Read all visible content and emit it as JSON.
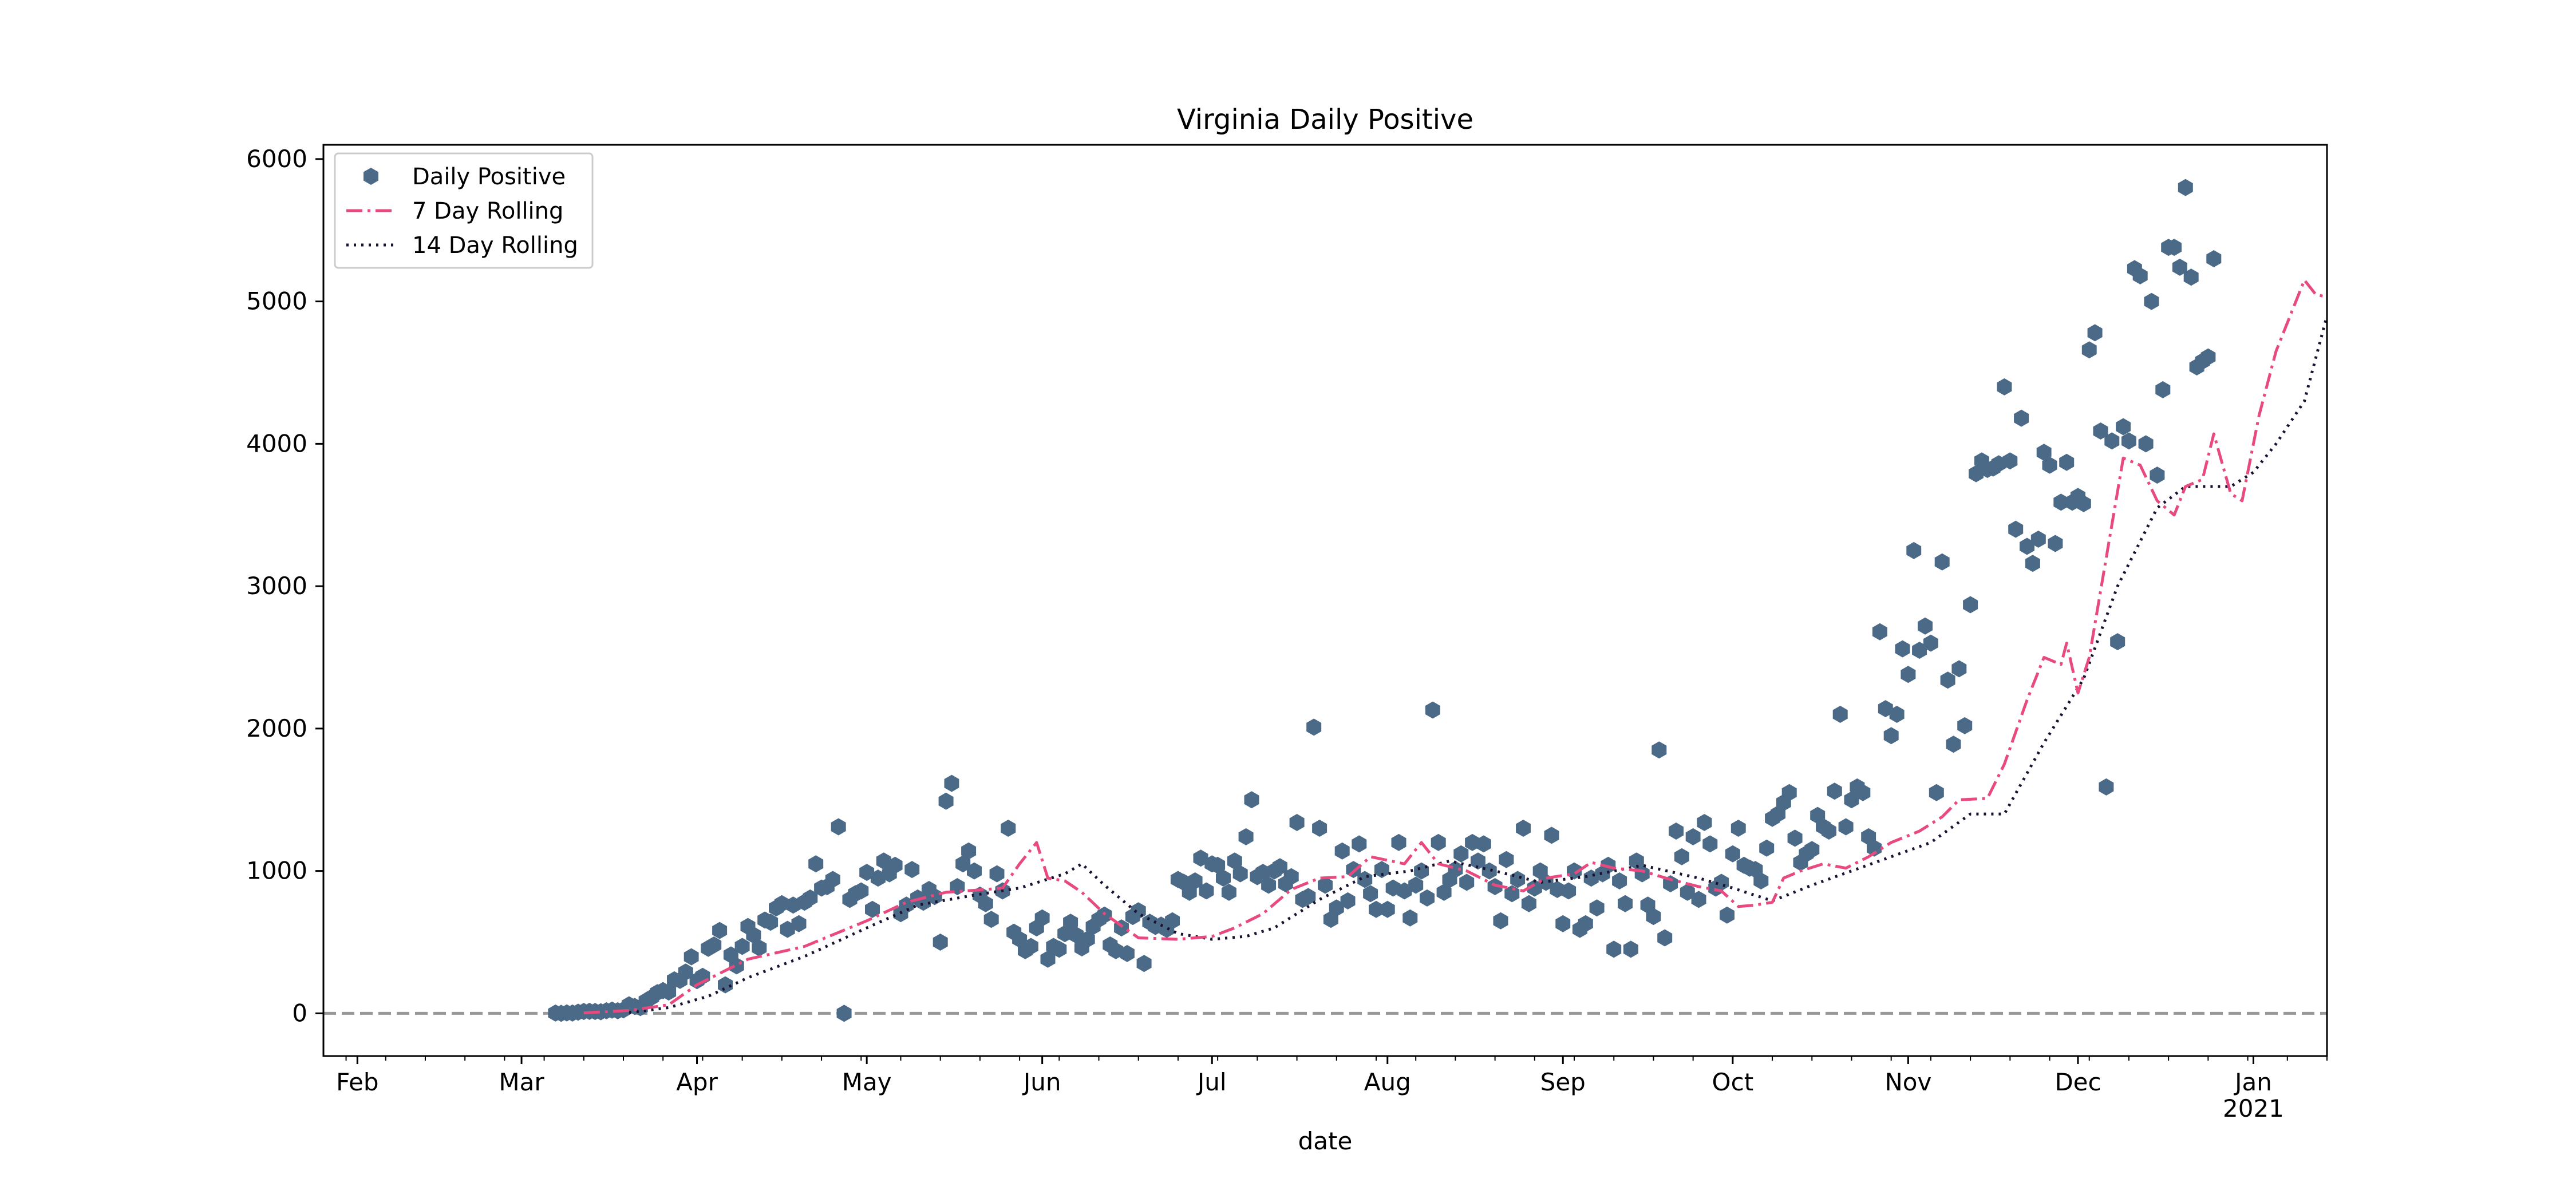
{
  "chart_data": {
    "type": "scatter",
    "title": "Virginia Daily Positive",
    "xlabel": "date",
    "ylabel": "",
    "xlim": [
      "2020-01-26",
      "2021-01-14"
    ],
    "ylim": [
      -300,
      6100
    ],
    "grid": false,
    "legend_position": "top-left",
    "zero_line": 0,
    "x_ticks": [
      {
        "date": "2020-02-01",
        "label": "Feb"
      },
      {
        "date": "2020-03-01",
        "label": "Mar"
      },
      {
        "date": "2020-04-01",
        "label": "Apr"
      },
      {
        "date": "2020-05-01",
        "label": "May"
      },
      {
        "date": "2020-06-01",
        "label": "Jun"
      },
      {
        "date": "2020-07-01",
        "label": "Jul"
      },
      {
        "date": "2020-08-01",
        "label": "Aug"
      },
      {
        "date": "2020-09-01",
        "label": "Sep"
      },
      {
        "date": "2020-10-01",
        "label": "Oct"
      },
      {
        "date": "2020-11-01",
        "label": "Nov"
      },
      {
        "date": "2020-12-01",
        "label": "Dec"
      },
      {
        "date": "2021-01-01",
        "label": "Jan",
        "sublabel": "2021"
      }
    ],
    "y_ticks": [
      0,
      1000,
      2000,
      3000,
      4000,
      5000,
      6000
    ],
    "colors": {
      "daily": "#4b6a88",
      "rolling7": "#e84a7f",
      "rolling14": "#1b1231",
      "zero_line": "#999999"
    },
    "series": [
      {
        "name": "Daily Positive",
        "style": "markers",
        "marker": "hexagon",
        "color": "#4b6a88",
        "daily_start": "2020-03-07",
        "values": [
          2,
          0,
          3,
          2,
          8,
          13,
          14,
          13,
          11,
          18,
          23,
          18,
          25,
          60,
          48,
          40,
          88,
          112,
          145,
          160,
          150,
          235,
          232,
          290,
          397,
          230,
          260,
          457,
          480,
          582,
          200,
          410,
          333,
          470,
          610,
          550,
          460,
          655,
          640,
          740,
          770,
          590,
          760,
          630,
          780,
          810,
          1050,
          880,
          890,
          940,
          1310,
          0,
          800,
          840,
          860,
          990,
          730,
          950,
          1070,
          980,
          1040,
          700,
          760,
          1010,
          810,
          780,
          870,
          820,
          500,
          1490,
          1615,
          890,
          1050,
          1140,
          1000,
          830,
          770,
          660,
          980,
          860,
          1300,
          570,
          520,
          440,
          470,
          600,
          670,
          380,
          470,
          450,
          560,
          640,
          550,
          460,
          520,
          610,
          660,
          690,
          480,
          440,
          600,
          420,
          680,
          720,
          350,
          640,
          610,
          620,
          590,
          650,
          940,
          920,
          850,
          930,
          1090,
          860,
          1050,
          1040,
          950,
          850,
          1070,
          980,
          1240,
          1500,
          960,
          990,
          900,
          1000,
          1030,
          910,
          960,
          1340,
          800,
          820,
          2010,
          1300,
          900,
          660,
          740,
          1140,
          790,
          1010,
          1190,
          940,
          840,
          730,
          1010,
          730,
          880,
          1200,
          860,
          670,
          900,
          1000,
          810,
          2130,
          1200,
          850,
          940,
          1010,
          1120,
          920,
          1200,
          1070,
          1190,
          1000,
          890,
          650,
          1080,
          840,
          940,
          1300,
          770,
          880,
          1000,
          920,
          1250,
          870,
          630,
          860,
          1000,
          590,
          630,
          950,
          740,
          980,
          1040,
          450,
          930,
          770,
          450,
          1070,
          980,
          760,
          680,
          1850,
          530,
          910,
          1280,
          1100,
          850,
          1240,
          800,
          1340,
          1190,
          880,
          920,
          690,
          1120,
          1300,
          1040,
          1020,
          1010,
          930,
          1160,
          1370,
          1400,
          1480,
          1550,
          1230,
          1060,
          1120,
          1150,
          1390,
          1310,
          1280,
          1560,
          2100,
          1310,
          1500,
          1590,
          1550,
          1240,
          1160,
          2680,
          2140,
          1950,
          2100,
          2560,
          2380,
          3250,
          2550,
          2720,
          2600,
          1550,
          3170,
          2340,
          1890,
          2420,
          2020,
          2870,
          3790,
          3880,
          3820,
          3830,
          3860,
          4400,
          3880,
          3400,
          4180,
          3280,
          3160,
          3330,
          3940,
          3850,
          3300,
          3590,
          3870,
          3590,
          3630,
          3580,
          4660,
          4780,
          4090,
          1590,
          4020,
          2610,
          4120,
          4020,
          5230,
          5180,
          4000,
          5000,
          3780,
          4380,
          5380,
          5380,
          5240,
          5800,
          5170,
          4540,
          4580,
          4610,
          5300
        ]
      },
      {
        "name": "7 Day Rolling",
        "style": "dashdot",
        "color": "#e84a7f",
        "points": [
          [
            "2020-03-12",
            3
          ],
          [
            "2020-03-20",
            20
          ],
          [
            "2020-03-27",
            60
          ],
          [
            "2020-04-01",
            200
          ],
          [
            "2020-04-10",
            380
          ],
          [
            "2020-04-20",
            470
          ],
          [
            "2020-05-01",
            650
          ],
          [
            "2020-05-08",
            780
          ],
          [
            "2020-05-15",
            850
          ],
          [
            "2020-05-22",
            870
          ],
          [
            "2020-05-25",
            880
          ],
          [
            "2020-05-28",
            1050
          ],
          [
            "2020-05-31",
            1200
          ],
          [
            "2020-06-02",
            950
          ],
          [
            "2020-06-05",
            930
          ],
          [
            "2020-06-08",
            850
          ],
          [
            "2020-06-12",
            700
          ],
          [
            "2020-06-18",
            530
          ],
          [
            "2020-06-25",
            520
          ],
          [
            "2020-07-01",
            540
          ],
          [
            "2020-07-05",
            600
          ],
          [
            "2020-07-10",
            700
          ],
          [
            "2020-07-15",
            870
          ],
          [
            "2020-07-20",
            950
          ],
          [
            "2020-07-25",
            960
          ],
          [
            "2020-07-29",
            1100
          ],
          [
            "2020-08-04",
            1050
          ],
          [
            "2020-08-07",
            1200
          ],
          [
            "2020-08-10",
            1050
          ],
          [
            "2020-08-15",
            1000
          ],
          [
            "2020-08-20",
            900
          ],
          [
            "2020-08-25",
            860
          ],
          [
            "2020-08-29",
            950
          ],
          [
            "2020-09-03",
            980
          ],
          [
            "2020-09-06",
            1060
          ],
          [
            "2020-09-10",
            1020
          ],
          [
            "2020-09-15",
            1000
          ],
          [
            "2020-09-20",
            940
          ],
          [
            "2020-09-25",
            890
          ],
          [
            "2020-09-29",
            860
          ],
          [
            "2020-10-02",
            750
          ],
          [
            "2020-10-05",
            760
          ],
          [
            "2020-10-08",
            780
          ],
          [
            "2020-10-10",
            950
          ],
          [
            "2020-10-13",
            1000
          ],
          [
            "2020-10-17",
            1050
          ],
          [
            "2020-10-21",
            1020
          ],
          [
            "2020-10-25",
            1100
          ],
          [
            "2020-10-29",
            1200
          ],
          [
            "2020-11-03",
            1280
          ],
          [
            "2020-11-07",
            1380
          ],
          [
            "2020-11-10",
            1500
          ],
          [
            "2020-11-15",
            1510
          ],
          [
            "2020-11-18",
            1750
          ],
          [
            "2020-11-22",
            2200
          ],
          [
            "2020-11-25",
            2500
          ],
          [
            "2020-11-28",
            2450
          ],
          [
            "2020-11-29",
            2600
          ],
          [
            "2020-12-01",
            2250
          ],
          [
            "2020-12-03",
            2500
          ],
          [
            "2020-12-06",
            3200
          ],
          [
            "2020-12-09",
            3900
          ],
          [
            "2020-12-12",
            3850
          ],
          [
            "2020-12-15",
            3600
          ],
          [
            "2020-12-18",
            3500
          ],
          [
            "2020-12-20",
            3700
          ],
          [
            "2020-12-23",
            3750
          ],
          [
            "2020-12-25",
            4070
          ],
          [
            "2020-12-28",
            3650
          ],
          [
            "2020-12-30",
            3600
          ],
          [
            "2021-01-02",
            4200
          ],
          [
            "2021-01-05",
            4650
          ],
          [
            "2021-01-08",
            4950
          ],
          [
            "2021-01-10",
            5150
          ],
          [
            "2021-01-12",
            5050
          ],
          [
            "2021-01-14",
            5030
          ]
        ]
      },
      {
        "name": "14 Day Rolling",
        "style": "dotted",
        "color": "#1b1231",
        "points": [
          [
            "2020-03-20",
            5
          ],
          [
            "2020-03-27",
            40
          ],
          [
            "2020-04-03",
            120
          ],
          [
            "2020-04-10",
            250
          ],
          [
            "2020-04-20",
            400
          ],
          [
            "2020-05-01",
            600
          ],
          [
            "2020-05-10",
            760
          ],
          [
            "2020-05-20",
            830
          ],
          [
            "2020-05-28",
            880
          ],
          [
            "2020-06-05",
            980
          ],
          [
            "2020-06-08",
            1050
          ],
          [
            "2020-06-12",
            900
          ],
          [
            "2020-06-18",
            700
          ],
          [
            "2020-06-25",
            560
          ],
          [
            "2020-07-01",
            520
          ],
          [
            "2020-07-07",
            540
          ],
          [
            "2020-07-12",
            600
          ],
          [
            "2020-07-20",
            800
          ],
          [
            "2020-07-28",
            960
          ],
          [
            "2020-08-05",
            1000
          ],
          [
            "2020-08-12",
            1070
          ],
          [
            "2020-08-20",
            1000
          ],
          [
            "2020-08-28",
            920
          ],
          [
            "2020-09-05",
            960
          ],
          [
            "2020-09-15",
            1040
          ],
          [
            "2020-09-25",
            950
          ],
          [
            "2020-10-01",
            880
          ],
          [
            "2020-10-08",
            790
          ],
          [
            "2020-10-15",
            900
          ],
          [
            "2020-10-22",
            1000
          ],
          [
            "2020-10-29",
            1100
          ],
          [
            "2020-11-05",
            1200
          ],
          [
            "2020-11-12",
            1400
          ],
          [
            "2020-11-18",
            1400
          ],
          [
            "2020-11-25",
            1900
          ],
          [
            "2020-12-02",
            2350
          ],
          [
            "2020-12-08",
            3000
          ],
          [
            "2020-12-15",
            3550
          ],
          [
            "2020-12-20",
            3700
          ],
          [
            "2020-12-28",
            3700
          ],
          [
            "2021-01-01",
            3800
          ],
          [
            "2021-01-05",
            4000
          ],
          [
            "2021-01-10",
            4300
          ],
          [
            "2021-01-14",
            4900
          ]
        ]
      }
    ]
  }
}
